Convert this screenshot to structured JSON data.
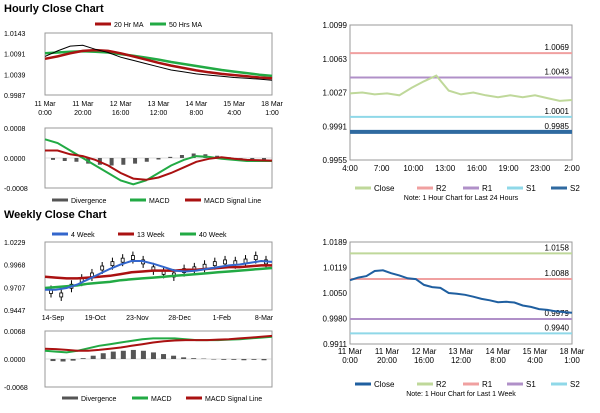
{
  "titles": {
    "hourly": "Hourly Close Chart",
    "weekly": "Weekly Close Chart"
  },
  "chart_data": [
    {
      "id": "hourly-ma",
      "type": "line",
      "legend": [
        "20 Hr MA",
        "50 Hrs MA"
      ],
      "colors": {
        "price": "#000000",
        "ma20": "#aa1111",
        "ma50": "#22aa44"
      },
      "yticks": [
        "1.0143",
        "1.0091",
        "1.0039",
        "0.9987"
      ],
      "ylim": [
        0.9987,
        1.0143
      ],
      "xticks": [
        [
          "11 Mar",
          "0:00"
        ],
        [
          "11 Mar",
          "20:00"
        ],
        [
          "12 Mar",
          "16:00"
        ],
        [
          "13 Mar",
          "12:00"
        ],
        [
          "14 Mar",
          "8:00"
        ],
        [
          "15 Mar",
          "4:00"
        ],
        [
          "18 Mar",
          "1:00"
        ]
      ],
      "series": [
        {
          "name": "Close",
          "values": [
            1.0084,
            1.0098,
            1.011,
            1.0112,
            1.0102,
            1.0094,
            1.0082,
            1.0074,
            1.0066,
            1.0058,
            1.005,
            1.0045,
            1.004,
            1.0037,
            1.0034,
            1.0031,
            1.0029,
            1.0027,
            1.0024
          ]
        },
        {
          "name": "20 Hr MA",
          "values": [
            1.0078,
            1.0084,
            1.0092,
            1.0098,
            1.01,
            1.0098,
            1.0092,
            1.0084,
            1.0076,
            1.0068,
            1.0061,
            1.0055,
            1.0049,
            1.0044,
            1.004,
            1.0037,
            1.0034,
            1.0031,
            1.0029
          ]
        },
        {
          "name": "50 Hrs MA",
          "values": [
            1.0092,
            1.0094,
            1.0096,
            1.0097,
            1.0096,
            1.0094,
            1.009,
            1.0086,
            1.0081,
            1.0076,
            1.007,
            1.0065,
            1.006,
            1.0055,
            1.005,
            1.0046,
            1.0042,
            1.0038,
            1.0035
          ]
        }
      ]
    },
    {
      "id": "hourly-macd",
      "type": "line",
      "yticks": [
        "0.0008",
        "0.0000",
        "-0.0008"
      ],
      "ylim": [
        -0.0008,
        0.0008
      ],
      "legend": [
        "Divergence",
        "MACD",
        "MACD Signal Line"
      ],
      "colors": {
        "div": "#555555",
        "macd": "#22aa44",
        "signal": "#aa1111"
      },
      "series": [
        {
          "name": "Divergence",
          "values": [
            -5e-05,
            -8e-05,
            -0.0001,
            -0.00015,
            -0.00018,
            -0.0002,
            -0.00018,
            -0.00015,
            -0.0001,
            -4e-05,
            3e-05,
            8e-05,
            0.00012,
            0.0001,
            6e-05,
            2e-05,
            -1e-05,
            -3e-05,
            -4e-05
          ]
        },
        {
          "name": "MACD",
          "values": [
            0.0005,
            0.0004,
            0.0002,
            0.0,
            -0.0002,
            -0.0004,
            -0.0006,
            -0.0007,
            -0.0006,
            -0.0004,
            -0.0002,
            -5e-05,
            5e-05,
            3e-05,
            -2e-05,
            -5e-05,
            -8e-05,
            -8e-05,
            -8e-05
          ]
        },
        {
          "name": "MACD Signal Line",
          "values": [
            0.0002,
            0.0002,
            0.0001,
            5e-05,
            -5e-05,
            -0.0002,
            -0.0004,
            -0.00055,
            -0.00058,
            -0.00052,
            -0.0004,
            -0.00025,
            -0.0001,
            -2e-05,
            2e-05,
            -2e-05,
            -5e-05,
            -6e-05,
            -7e-05
          ]
        }
      ]
    },
    {
      "id": "hourly-levels",
      "type": "line",
      "yticks": [
        "1.0099",
        "1.0063",
        "1.0027",
        "0.9991",
        "0.9955"
      ],
      "ylim": [
        0.9955,
        1.0099
      ],
      "xticks": [
        "4:00",
        "7:00",
        "10:00",
        "13:00",
        "16:00",
        "19:00",
        "23:00",
        "2:00"
      ],
      "legend": [
        "Close",
        "R2",
        "R1",
        "S1",
        "S2"
      ],
      "colors": {
        "close": "#bfd89a",
        "r2": "#f0a0a0",
        "r1": "#b090c8",
        "s1": "#8fd8e8",
        "s2": "#2f6aa0"
      },
      "levels": [
        {
          "name": "R2",
          "value": 1.0069,
          "label": "1.0069"
        },
        {
          "name": "R1",
          "value": 1.0043,
          "label": "1.0043"
        },
        {
          "name": "S1",
          "value": 1.0001,
          "label": "1.0001"
        },
        {
          "name": "S2",
          "value": 0.9985,
          "label": "0.9985"
        }
      ],
      "series": [
        {
          "name": "Close",
          "values": [
            1.0026,
            1.0027,
            1.0025,
            1.0026,
            1.0024,
            1.0032,
            1.0039,
            1.0045,
            1.0029,
            1.0025,
            1.0027,
            1.0024,
            1.0022,
            1.0024,
            1.0022,
            1.0024,
            1.0021,
            1.0018,
            1.0019
          ]
        }
      ],
      "note": "Note: 1 Hour Chart for Last 24 Hours"
    },
    {
      "id": "weekly-ma",
      "type": "line",
      "legend": [
        "4 Week",
        "13 Week",
        "40 Week"
      ],
      "colors": {
        "ma4": "#3366cc",
        "ma13": "#aa1111",
        "ma40": "#22aa44",
        "candle": "#000000"
      },
      "yticks": [
        "1.0229",
        "0.9968",
        "0.9707",
        "0.9447"
      ],
      "ylim": [
        0.9447,
        1.0229
      ],
      "xticks": [
        "14-Sep",
        "19-Oct",
        "23-Nov",
        "28-Dec",
        "1-Feb",
        "8-Mar"
      ],
      "series": [
        {
          "name": "Close",
          "values": [
            0.966,
            0.962,
            0.972,
            0.979,
            0.985,
            0.993,
            0.998,
            1.002,
            1.005,
            1.0,
            0.992,
            0.988,
            0.985,
            0.99,
            0.992,
            0.995,
            0.998,
            1.0,
            0.999,
            1.001,
            1.005,
            1.0
          ]
        },
        {
          "name": "4 Week",
          "values": [
            0.968,
            0.968,
            0.97,
            0.974,
            0.98,
            0.986,
            0.992,
            0.997,
            1.001,
            1.001,
            0.998,
            0.994,
            0.99,
            0.989,
            0.99,
            0.992,
            0.994,
            0.996,
            0.997,
            0.999,
            1.001,
            1.0
          ]
        },
        {
          "name": "13 Week",
          "values": [
            0.983,
            0.982,
            0.981,
            0.981,
            0.982,
            0.983,
            0.984,
            0.986,
            0.988,
            0.989,
            0.99,
            0.99,
            0.99,
            0.991,
            0.991,
            0.992,
            0.993,
            0.994,
            0.994,
            0.995,
            0.996,
            0.996
          ]
        },
        {
          "name": "40 Week",
          "values": [
            0.97,
            0.971,
            0.972,
            0.973,
            0.975,
            0.976,
            0.977,
            0.979,
            0.98,
            0.981,
            0.982,
            0.983,
            0.984,
            0.985,
            0.986,
            0.987,
            0.988,
            0.989,
            0.99,
            0.991,
            0.992,
            0.993
          ]
        }
      ]
    },
    {
      "id": "weekly-macd",
      "type": "line",
      "yticks": [
        "0.0068",
        "0.0000",
        "-0.0068"
      ],
      "ylim": [
        -0.0068,
        0.0068
      ],
      "legend": [
        "Divergence",
        "MACD",
        "MACD Signal Line"
      ],
      "colors": {
        "div": "#555555",
        "macd": "#22aa44",
        "signal": "#aa1111"
      },
      "series": [
        {
          "name": "Divergence",
          "values": [
            -0.0005,
            -0.0006,
            -0.0004,
            0.0002,
            0.0008,
            0.0014,
            0.0018,
            0.002,
            0.0022,
            0.002,
            0.0016,
            0.0012,
            0.0008,
            0.0004,
            0.0002,
            0.0001,
            0.0,
            -0.0002,
            -0.0002,
            -0.0003,
            -0.0002,
            -0.0003
          ]
        },
        {
          "name": "MACD",
          "values": [
            0.002,
            0.0018,
            0.0016,
            0.002,
            0.0026,
            0.0032,
            0.0036,
            0.004,
            0.0044,
            0.0048,
            0.005,
            0.005,
            0.005,
            0.0048,
            0.0046,
            0.0046,
            0.0046,
            0.0047,
            0.0048,
            0.005,
            0.0052,
            0.0054
          ]
        },
        {
          "name": "MACD Signal Line",
          "values": [
            0.0025,
            0.0024,
            0.0022,
            0.002,
            0.002,
            0.0022,
            0.0025,
            0.0028,
            0.0032,
            0.0036,
            0.004,
            0.0043,
            0.0045,
            0.0046,
            0.0046,
            0.0046,
            0.0047,
            0.0048,
            0.005,
            0.0052,
            0.0054,
            0.0056
          ]
        }
      ]
    },
    {
      "id": "weekly-levels",
      "type": "line",
      "yticks": [
        "1.0189",
        "1.0119",
        "1.0050",
        "0.9980",
        "0.9911"
      ],
      "ylim": [
        0.9911,
        1.0189
      ],
      "xticks": [
        [
          "11 Mar",
          "0:00"
        ],
        [
          "11 Mar",
          "20:00"
        ],
        [
          "12 Mar",
          "16:00"
        ],
        [
          "13 Mar",
          "12:00"
        ],
        [
          "14 Mar",
          "8:00"
        ],
        [
          "15 Mar",
          "4:00"
        ],
        [
          "18 Mar",
          "1:00"
        ]
      ],
      "legend": [
        "Close",
        "R2",
        "R1",
        "S1",
        "S2"
      ],
      "colors": {
        "close": "#1f5fa0",
        "r2": "#bfd89a",
        "r1": "#f0a0a0",
        "s1": "#b090c8",
        "s2": "#8fd8e8"
      },
      "levels": [
        {
          "name": "R2",
          "value": 1.0158,
          "label": "1.0158"
        },
        {
          "name": "R1",
          "value": 1.0088,
          "label": "1.0088"
        },
        {
          "name": "S1",
          "value": 0.9979,
          "label": "0.9979"
        },
        {
          "name": "S2",
          "value": 0.994,
          "label": "0.9940"
        }
      ],
      "series": [
        {
          "name": "Close",
          "values": [
            1.0085,
            1.0092,
            1.0096,
            1.011,
            1.0112,
            1.0104,
            1.0098,
            1.009,
            1.0088,
            1.0072,
            1.0066,
            1.0064,
            1.005,
            1.0048,
            1.0045,
            1.004,
            1.0034,
            1.003,
            1.0025,
            1.0026,
            1.0024,
            1.0016,
            1.0012,
            1.0006,
            1.0004,
            1.0,
            0.9998,
            0.9996
          ]
        }
      ],
      "note": "Note: 1 Hour Chart for Last 1 Week"
    }
  ]
}
